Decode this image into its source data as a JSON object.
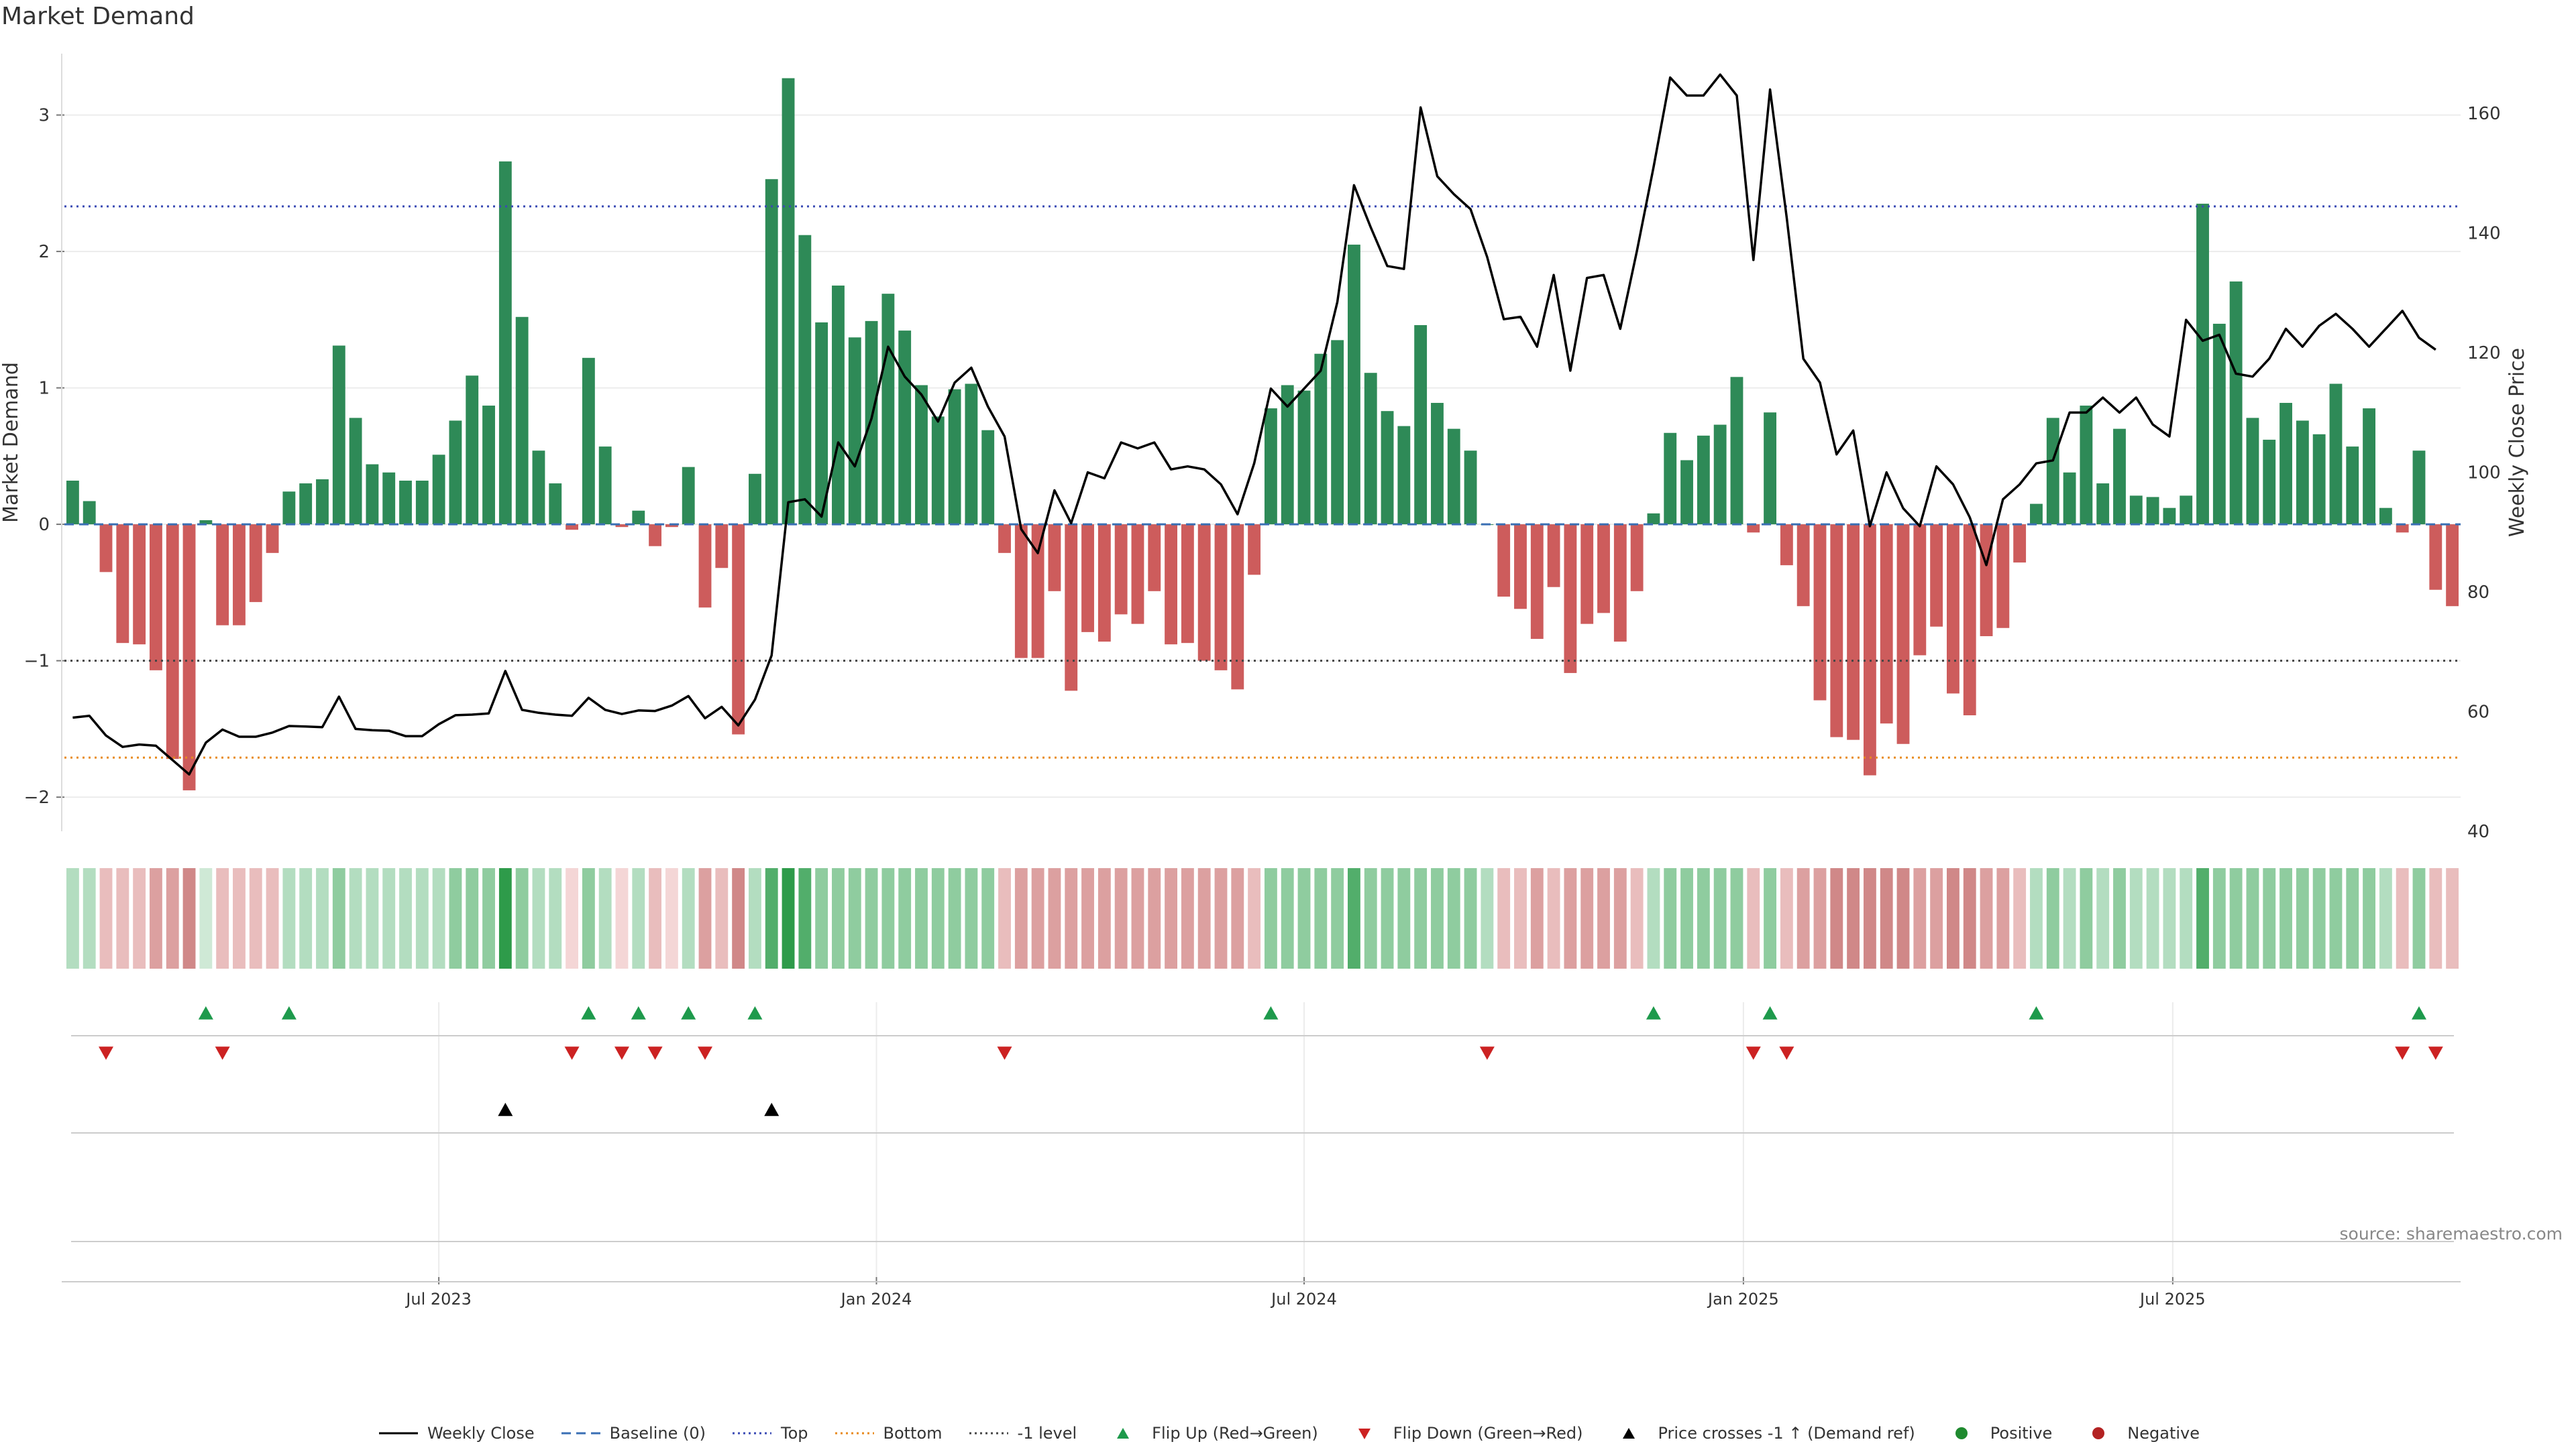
{
  "title": "Market Demand",
  "source": "source: sharemaestro.com",
  "colors": {
    "positive": "#2e8a57",
    "negative": "#cd5c5c",
    "close": "#000000",
    "top": "#3a4ab4",
    "bottom": "#e88a1c",
    "minus1": "#444444",
    "baseline": "#3a6fb4",
    "flip_up": "#1e9a4c",
    "flip_down": "#cc2222",
    "cross": "#000000",
    "dot_pos": "#1f8a2f",
    "dot_neg": "#b32222"
  },
  "legend": {
    "weekly_close": "Weekly Close",
    "baseline": "Baseline (0)",
    "top": "Top",
    "bottom": "Bottom",
    "minus1": "-1 level",
    "flip_up": "Flip Up (Red→Green)",
    "flip_down": "Flip Down (Green→Red)",
    "cross": "Price crosses -1 ↑ (Demand ref)",
    "positive": "Positive",
    "negative": "Negative"
  },
  "chart_data": {
    "type": "bar",
    "ylabel_left": "Market Demand",
    "ylabel_right": "Weekly Close Price",
    "y_ticks": [
      "−2",
      "−1",
      "0",
      "1",
      "2",
      "3"
    ],
    "y_tick_values": [
      -2,
      -1,
      0,
      1,
      2,
      3
    ],
    "ylim": [
      -2.25,
      3.45
    ],
    "y2_ticks": [
      "40",
      "60",
      "80",
      "100",
      "120",
      "140",
      "160"
    ],
    "y2_tick_values": [
      40,
      60,
      80,
      100,
      120,
      140,
      160
    ],
    "y2lim": [
      40,
      170
    ],
    "top_level": 2.33,
    "bottom_level": -1.71,
    "minus1_level": -1.0,
    "x_ticks": [
      "Jul 2023",
      "Jan 2024",
      "Jul 2024",
      "Jan 2025",
      "Jul 2025"
    ],
    "x_tick_index": [
      22,
      48.3,
      74,
      100.4,
      126.2
    ],
    "demand": [
      0.32,
      0.17,
      -0.35,
      -0.87,
      -0.88,
      -1.07,
      -1.72,
      -1.95,
      0.03,
      -0.74,
      -0.74,
      -0.57,
      -0.21,
      0.24,
      0.3,
      0.33,
      1.31,
      0.78,
      0.44,
      0.38,
      0.32,
      0.32,
      0.51,
      0.76,
      1.09,
      0.87,
      2.66,
      1.52,
      0.54,
      0.3,
      -0.04,
      1.22,
      0.57,
      -0.02,
      0.1,
      -0.16,
      -0.02,
      0.42,
      -0.61,
      -0.32,
      -1.54,
      0.37,
      2.53,
      3.27,
      2.12,
      1.48,
      1.75,
      1.37,
      1.49,
      1.69,
      1.42,
      1.02,
      0.79,
      0.99,
      1.03,
      0.69,
      -0.21,
      -0.98,
      -0.98,
      -0.49,
      -1.22,
      -0.79,
      -0.86,
      -0.66,
      -0.73,
      -0.49,
      -0.88,
      -0.87,
      -1.0,
      -1.07,
      -1.21,
      -0.37,
      0.85,
      1.02,
      0.98,
      1.25,
      1.35,
      2.05,
      1.11,
      0.83,
      0.72,
      1.46,
      0.89,
      0.7,
      0.54,
      0.0,
      -0.53,
      -0.62,
      -0.84,
      -0.46,
      -1.09,
      -0.73,
      -0.65,
      -0.86,
      -0.49,
      0.08,
      0.67,
      0.47,
      0.65,
      0.73,
      1.08,
      -0.06,
      0.82,
      -0.3,
      -0.6,
      -1.29,
      -1.56,
      -1.58,
      -1.84,
      -1.46,
      -1.61,
      -0.96,
      -0.75,
      -1.24,
      -1.4,
      -0.82,
      -0.76,
      -0.28,
      0.15,
      0.78,
      0.38,
      0.87,
      0.3,
      0.7,
      0.21,
      0.2,
      0.12,
      0.21,
      2.35,
      1.47,
      1.78,
      0.78,
      0.62,
      0.89,
      0.76,
      0.66,
      1.03,
      0.57,
      0.85,
      0.12,
      -0.06,
      0.54,
      -0.48,
      -0.6
    ],
    "weekly_close": [
      59,
      59.3,
      56,
      54.1,
      54.5,
      54.3,
      51.9,
      49.5,
      54.8,
      57,
      55.8,
      55.8,
      56.5,
      57.6,
      57.5,
      57.4,
      62.5,
      57.1,
      56.9,
      56.8,
      55.9,
      55.9,
      57.9,
      59.4,
      59.5,
      59.7,
      66.8,
      60.3,
      59.8,
      59.5,
      59.3,
      62.3,
      60.3,
      59.6,
      60.2,
      60.1,
      61,
      62.6,
      58.9,
      60.8,
      57.7,
      62,
      69.4,
      95,
      95.5,
      92.6,
      105,
      101,
      109,
      121,
      116,
      113,
      108.5,
      115,
      117.5,
      111,
      106,
      90.5,
      86.5,
      97,
      91.5,
      100,
      99,
      105,
      104,
      105,
      100.5,
      101,
      100.5,
      98,
      93,
      101.5,
      114,
      111,
      114,
      117,
      128.5,
      148,
      141,
      134.5,
      134,
      161,
      149.5,
      146.5,
      144,
      136,
      125.6,
      126,
      121,
      133,
      117,
      132.5,
      133,
      124,
      137,
      151,
      166,
      163,
      163,
      166.5,
      163,
      135.5,
      164,
      142.6,
      119,
      115,
      103,
      107,
      91,
      100,
      94,
      91,
      101,
      98,
      92.5,
      84.5,
      95.5,
      98,
      101.5,
      102,
      110,
      110,
      112.5,
      110,
      112.5,
      108,
      106,
      125.5,
      122,
      123,
      116.5,
      116,
      119,
      124,
      121,
      124.5,
      126.5,
      124,
      121,
      124,
      127,
      122.5,
      120.5
    ],
    "shade_level": [
      1,
      1,
      1,
      1,
      1,
      2,
      2,
      3,
      0,
      1,
      1,
      1,
      1,
      1,
      1,
      1,
      2,
      1,
      1,
      1,
      1,
      1,
      1,
      2,
      2,
      2,
      4,
      2,
      1,
      1,
      0,
      2,
      1,
      0,
      1,
      1,
      0,
      1,
      2,
      1,
      3,
      1,
      3,
      4,
      3,
      2,
      2,
      2,
      2,
      2,
      2,
      2,
      2,
      2,
      2,
      2,
      1,
      2,
      2,
      2,
      2,
      2,
      2,
      2,
      2,
      2,
      2,
      2,
      2,
      2,
      2,
      1,
      2,
      2,
      2,
      2,
      2,
      3,
      2,
      2,
      2,
      2,
      2,
      2,
      2,
      1,
      1,
      1,
      2,
      1,
      2,
      2,
      2,
      2,
      1,
      1,
      2,
      2,
      2,
      2,
      2,
      1,
      2,
      1,
      2,
      2,
      3,
      3,
      3,
      3,
      3,
      2,
      2,
      3,
      3,
      2,
      2,
      1,
      1,
      2,
      1,
      2,
      1,
      2,
      1,
      1,
      1,
      1,
      3,
      2,
      2,
      2,
      2,
      2,
      2,
      2,
      2,
      2,
      2,
      1,
      1,
      2,
      1,
      1
    ],
    "flip_up_index": [
      8,
      13,
      31,
      34,
      37,
      41,
      72,
      95,
      102,
      118,
      141
    ],
    "flip_down_index": [
      2,
      9,
      30,
      33,
      35,
      38,
      56,
      85,
      101,
      103,
      140,
      142
    ],
    "cross_index": [
      26,
      42
    ]
  }
}
